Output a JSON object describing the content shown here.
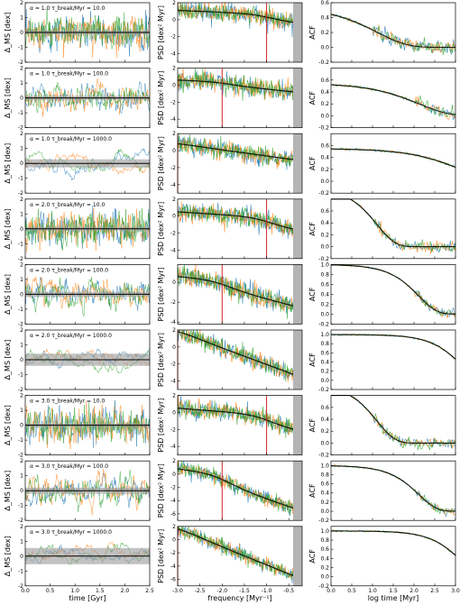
{
  "colors": {
    "blue": "#1f77b4",
    "orange": "#ff7f0e",
    "green": "#2ca02c",
    "band": "#9a9a9a",
    "marker": "#d62728",
    "nyquist": "#b4b4b4"
  },
  "chart_data": {
    "type": "line",
    "layout": {
      "rows": 9,
      "columns": 3
    },
    "columns": [
      {
        "id": "time",
        "ylabel": "Δ_MS [dex]",
        "xlabel": "time [Gyr]",
        "xlim": [
          0.0,
          2.5
        ],
        "ylim": [
          -2,
          2
        ],
        "xticks": [
          "0.0",
          "0.5",
          "1.0",
          "1.5",
          "2.0",
          "2.5"
        ],
        "yticks": [
          "-2",
          "-1",
          "0",
          "1",
          "2"
        ]
      },
      {
        "id": "psd",
        "ylabel": "PSD [dex² Myr]",
        "xlabel": "frequency [Myr⁻¹]",
        "xlim": [
          -3.0,
          -0.2
        ],
        "xticks": [
          "-3.0",
          "-2.5",
          "-2.0",
          "-1.5",
          "-1.0",
          "-0.5"
        ]
      },
      {
        "id": "acf",
        "ylabel": "ACF",
        "xlabel": "log time [Myr]",
        "xlim": [
          0.0,
          3.0
        ],
        "xticks": [
          "0.0",
          "0.5",
          "1.0",
          "1.5",
          "2.0",
          "2.5",
          "3.0"
        ]
      }
    ],
    "rows": [
      {
        "label": "α = 1.0   τ_break/Myr = 10.0",
        "alpha": 1.0,
        "tau": 10.0,
        "band": 0.08,
        "marker": -1.0,
        "psd_top": 1.1,
        "psd_bottom": -0.5,
        "psd_ylim": [
          -5,
          2
        ],
        "psd_yticks": [
          "2",
          "0",
          "-2",
          "-4"
        ],
        "acf_ylim": [
          -0.2,
          0.6
        ],
        "acf_yticks": [
          "0.6",
          "0.4",
          "0.2",
          "0.0",
          "-0.2"
        ]
      },
      {
        "label": "α = 1.0   τ_break/Myr = 100.0",
        "alpha": 1.0,
        "tau": 100.0,
        "band": 0.1,
        "marker": -2.0,
        "psd_top": 0.6,
        "psd_bottom": -0.9,
        "psd_ylim": [
          -5,
          2
        ],
        "psd_yticks": [
          "2",
          "0",
          "-2",
          "-4"
        ],
        "acf_ylim": [
          -0.2,
          0.8
        ],
        "acf_yticks": [
          "0.6",
          "0.4",
          "0.2",
          "0.0",
          "-0.2"
        ]
      },
      {
        "label": "α = 1.0   τ_break/Myr = 1000.0",
        "alpha": 1.0,
        "tau": 1000.0,
        "band": 0.2,
        "marker": -3.0,
        "psd_top": 0.8,
        "psd_bottom": -1.2,
        "psd_ylim": [
          -5,
          2
        ],
        "psd_yticks": [
          "2",
          "0",
          "-2",
          "-4"
        ],
        "acf_ylim": [
          -0.2,
          0.8
        ],
        "acf_yticks": [
          "0.6",
          "0.4",
          "0.2",
          "0.0",
          "-0.2"
        ]
      },
      {
        "label": "α = 2.0   τ_break/Myr = 10.0",
        "alpha": 2.0,
        "tau": 10.0,
        "band": 0.08,
        "marker": -1.0,
        "psd_top": 0.5,
        "psd_bottom": -1.8,
        "psd_ylim": [
          -5,
          2
        ],
        "psd_yticks": [
          "2",
          "0",
          "-2",
          "-4"
        ],
        "acf_ylim": [
          -0.2,
          0.8
        ],
        "acf_yticks": [
          "0.6",
          "0.4",
          "0.2",
          "0.0",
          "-0.2"
        ]
      },
      {
        "label": "α = 2.0   τ_break/Myr = 100.0",
        "alpha": 2.0,
        "tau": 100.0,
        "band": 0.12,
        "marker": -2.0,
        "psd_top": 0.6,
        "psd_bottom": -2.6,
        "psd_ylim": [
          -4.2,
          1.8
        ],
        "psd_yticks": [
          "2",
          "0",
          "-2",
          "-4"
        ],
        "acf_ylim": [
          -0.2,
          1.0
        ],
        "acf_yticks": [
          "1.0",
          "0.8",
          "0.6",
          "0.4",
          "0.2",
          "0.0",
          "-0.2"
        ]
      },
      {
        "label": "α = 2.0   τ_break/Myr = 1000.0",
        "alpha": 2.0,
        "tau": 1000.0,
        "band": 0.3,
        "marker": -3.0,
        "psd_top": 1.8,
        "psd_bottom": -3.6,
        "psd_ylim": [
          -5,
          2
        ],
        "psd_yticks": [
          "2",
          "0",
          "-2",
          "-4"
        ],
        "acf_ylim": [
          -0.2,
          1.1
        ],
        "acf_yticks": [
          "1.0",
          "0.8",
          "0.6",
          "0.4",
          "0.2",
          "0.0",
          "-0.2"
        ]
      },
      {
        "label": "α = 3.0   τ_break/Myr = 10.0",
        "alpha": 3.0,
        "tau": 10.0,
        "band": 0.08,
        "marker": -1.0,
        "psd_top": 0.5,
        "psd_bottom": -2.3,
        "psd_ylim": [
          -5,
          2
        ],
        "psd_yticks": [
          "2",
          "0",
          "-2",
          "-4"
        ],
        "acf_ylim": [
          -0.2,
          0.8
        ],
        "acf_yticks": [
          "0.6",
          "0.4",
          "0.2",
          "0.0",
          "-0.2"
        ]
      },
      {
        "label": "α = 3.0   τ_break/Myr = 100.0",
        "alpha": 3.0,
        "tau": 100.0,
        "band": 0.15,
        "marker": -2.0,
        "psd_top": 0.8,
        "psd_bottom": -5.6,
        "psd_ylim": [
          -7,
          2
        ],
        "psd_yticks": [
          "2",
          "0",
          "-2",
          "-4",
          "-6"
        ],
        "acf_ylim": [
          -0.2,
          1.1
        ],
        "acf_yticks": [
          "1.0",
          "0.8",
          "0.6",
          "0.4",
          "0.2",
          "0.0",
          "-0.2"
        ]
      },
      {
        "label": "α = 3.0   τ_break/Myr = 1000.0",
        "alpha": 3.0,
        "tau": 1000.0,
        "band": 0.4,
        "marker": -3.0,
        "psd_top": 1.6,
        "psd_bottom": -6.0,
        "psd_ylim": [
          -7,
          2
        ],
        "psd_yticks": [
          "2",
          "0",
          "-2",
          "-4",
          "-6"
        ],
        "acf_ylim": [
          -0.2,
          1.1
        ],
        "acf_yticks": [
          "1.0",
          "0.8",
          "0.6",
          "0.4",
          "0.2",
          "0.0",
          "-0.2"
        ]
      }
    ]
  }
}
